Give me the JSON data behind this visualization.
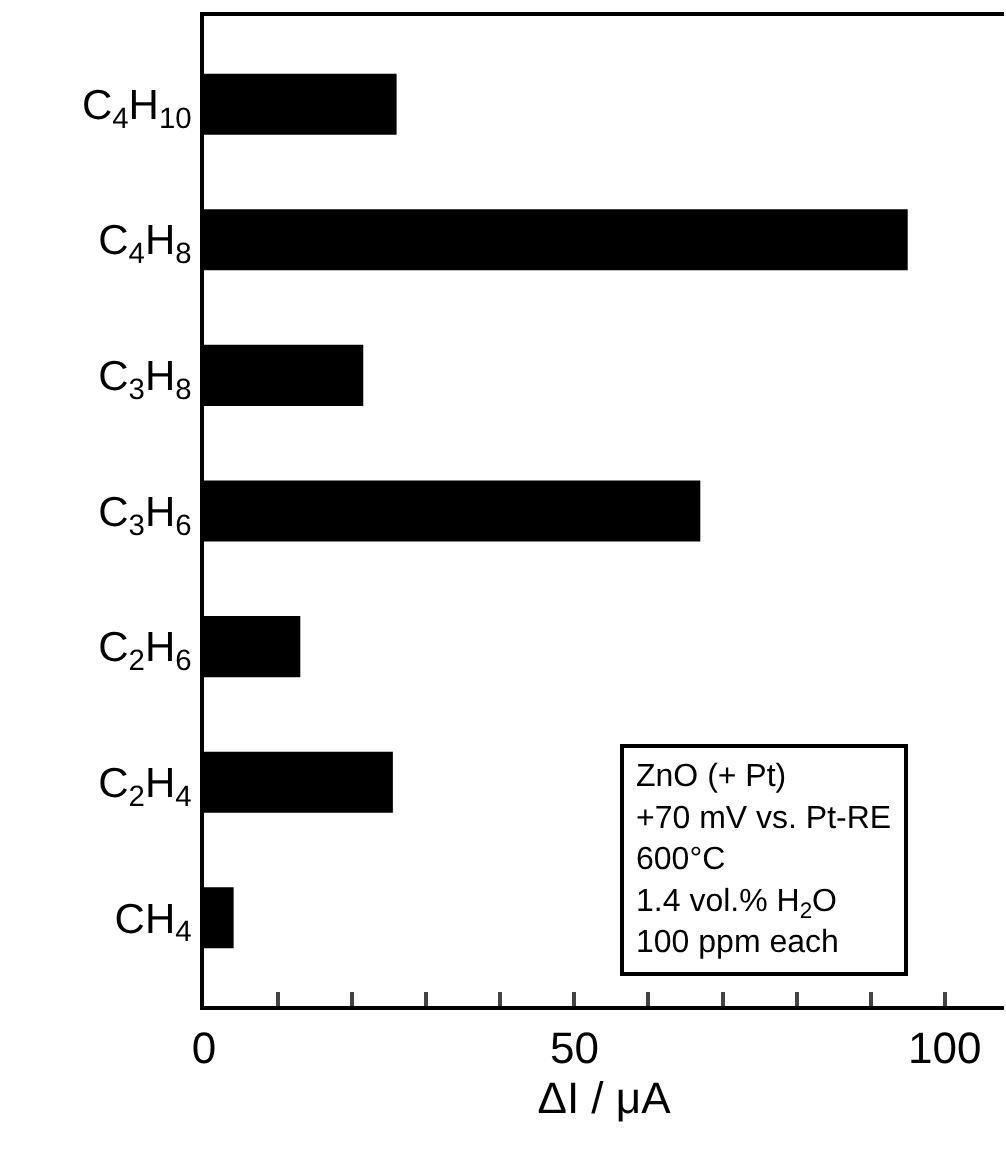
{
  "chart_data": {
    "type": "bar",
    "orientation": "horizontal",
    "xlabel": "ΔI / μA",
    "categories": [
      "C$_{4}$H$_{10}$",
      "C$_{4}$H$_{8}$",
      "C$_{3}$H$_{8}$",
      "C$_{3}$H$_{6}$",
      "C$_{2}$H$_{6}$",
      "C$_{2}$H$_{4}$",
      "CH$_{4}$"
    ],
    "values": [
      26,
      95,
      21.5,
      67,
      13,
      25.5,
      4
    ],
    "color": "#000000",
    "xlim": [
      0,
      108
    ],
    "xticks": [
      0,
      {
        "value": 10,
        "label": null
      },
      {
        "value": 20,
        "label": null
      },
      {
        "value": 30,
        "label": null
      },
      {
        "value": 40,
        "label": null
      },
      50,
      {
        "value": 60,
        "label": null
      },
      {
        "value": 70,
        "label": null
      },
      {
        "value": 80,
        "label": null
      },
      {
        "value": 90,
        "label": null
      },
      100
    ],
    "legend": false,
    "annotations": [
      "ZnO (+ Pt)\n+70 mV vs. Pt-RE\n600°C\n1.4 vol.% H$_{2}$O\n100 ppm each"
    ]
  }
}
